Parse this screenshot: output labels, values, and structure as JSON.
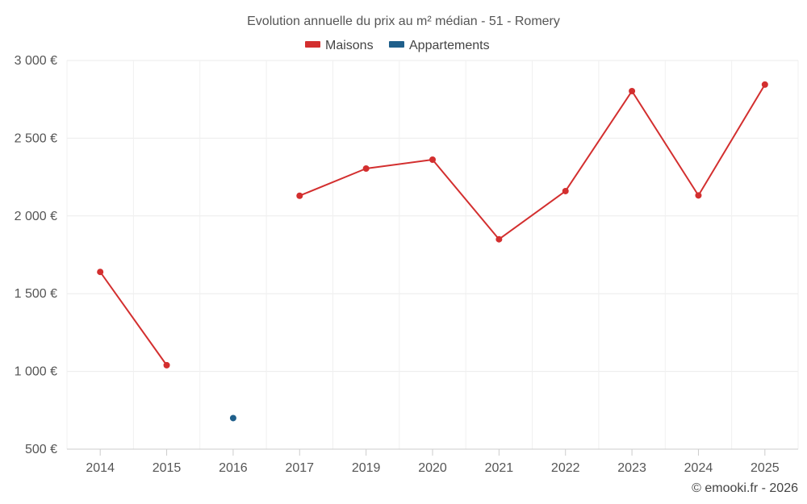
{
  "chart_data": {
    "type": "line",
    "title": "Evolution annuelle du prix au m² médian - 51 - Romery",
    "categories": [
      "2014",
      "2015",
      "2016",
      "2017",
      "2019",
      "2020",
      "2021",
      "2022",
      "2023",
      "2024",
      "2025"
    ],
    "series": [
      {
        "name": "Maisons",
        "color": "#d32f2f",
        "values": [
          1640,
          1040,
          null,
          2130,
          2305,
          2362,
          1850,
          2160,
          2803,
          2132,
          2845
        ]
      },
      {
        "name": "Appartements",
        "color": "#1f5f8b",
        "values": [
          null,
          null,
          700,
          null,
          null,
          null,
          null,
          null,
          null,
          null,
          null
        ]
      }
    ],
    "yticks": [
      500,
      1000,
      1500,
      2000,
      2500,
      3000
    ],
    "ytick_labels": [
      "500 €",
      "1 000 €",
      "1 500 €",
      "2 000 €",
      "2 500 €",
      "3 000 €"
    ],
    "ylim": [
      500,
      3000
    ],
    "grid": true,
    "legend_position": "top-center",
    "xlabel": "",
    "ylabel": ""
  },
  "credit": "© emooki.fr - 2026"
}
